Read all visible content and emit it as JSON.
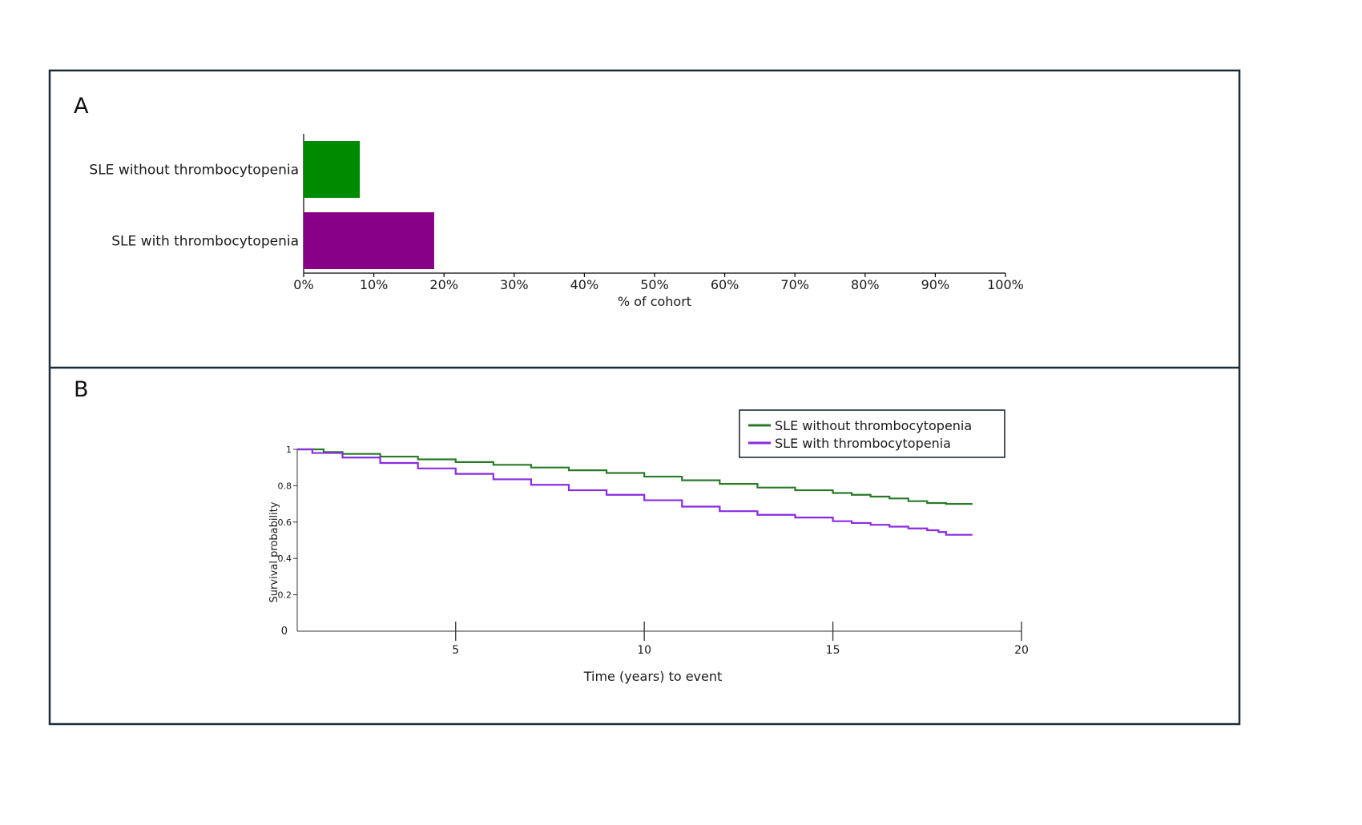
{
  "panels": {
    "a_label": "A",
    "b_label": "B"
  },
  "chart_data": [
    {
      "type": "bar",
      "orientation": "horizontal",
      "categories": [
        "SLE without thrombocytopenia",
        "SLE with thrombocytopenia"
      ],
      "values": [
        8,
        18.6
      ],
      "colors": [
        "#008a00",
        "#870087"
      ],
      "xlabel": "% of cohort",
      "xlim": [
        0,
        100
      ],
      "xticks": [
        "0%",
        "10%",
        "20%",
        "30%",
        "40%",
        "50%",
        "60%",
        "70%",
        "80%",
        "90%",
        "100%"
      ],
      "grid": false
    },
    {
      "type": "line",
      "step": true,
      "xlabel": "Time (years) to event",
      "ylabel": "Survival probability",
      "xlim": [
        0.8,
        20
      ],
      "ylim": [
        0,
        1
      ],
      "xticks": [
        "5",
        "10",
        "15",
        "20"
      ],
      "yticks": [
        "0",
        "0.2",
        "0.4",
        "0.6",
        "0.8",
        "1"
      ],
      "legend_position": "top-right",
      "grid": false,
      "series": [
        {
          "name": "SLE without thrombocytopenia",
          "color": "#2a7a2a",
          "points": [
            [
              0.8,
              1.0
            ],
            [
              1.5,
              0.985
            ],
            [
              2,
              0.975
            ],
            [
              3,
              0.96
            ],
            [
              4,
              0.945
            ],
            [
              5,
              0.93
            ],
            [
              6,
              0.915
            ],
            [
              7,
              0.9
            ],
            [
              8,
              0.885
            ],
            [
              9,
              0.87
            ],
            [
              10,
              0.85
            ],
            [
              11,
              0.83
            ],
            [
              12,
              0.81
            ],
            [
              13,
              0.79
            ],
            [
              14,
              0.775
            ],
            [
              15,
              0.76
            ],
            [
              15.5,
              0.75
            ],
            [
              16,
              0.74
            ],
            [
              16.5,
              0.73
            ],
            [
              17,
              0.715
            ],
            [
              17.5,
              0.705
            ],
            [
              18,
              0.7
            ],
            [
              18.7,
              0.7
            ]
          ]
        },
        {
          "name": "SLE with thrombocytopenia",
          "color": "#8a2be2",
          "points": [
            [
              0.8,
              1.0
            ],
            [
              1.2,
              0.98
            ],
            [
              2,
              0.955
            ],
            [
              3,
              0.925
            ],
            [
              4,
              0.895
            ],
            [
              5,
              0.865
            ],
            [
              6,
              0.835
            ],
            [
              7,
              0.805
            ],
            [
              8,
              0.775
            ],
            [
              9,
              0.75
            ],
            [
              10,
              0.72
            ],
            [
              11,
              0.685
            ],
            [
              12,
              0.66
            ],
            [
              13,
              0.64
            ],
            [
              14,
              0.625
            ],
            [
              15,
              0.605
            ],
            [
              15.5,
              0.595
            ],
            [
              16,
              0.585
            ],
            [
              16.5,
              0.575
            ],
            [
              17,
              0.565
            ],
            [
              17.5,
              0.555
            ],
            [
              17.8,
              0.545
            ],
            [
              18,
              0.53
            ],
            [
              18.7,
              0.53
            ]
          ]
        }
      ]
    }
  ]
}
